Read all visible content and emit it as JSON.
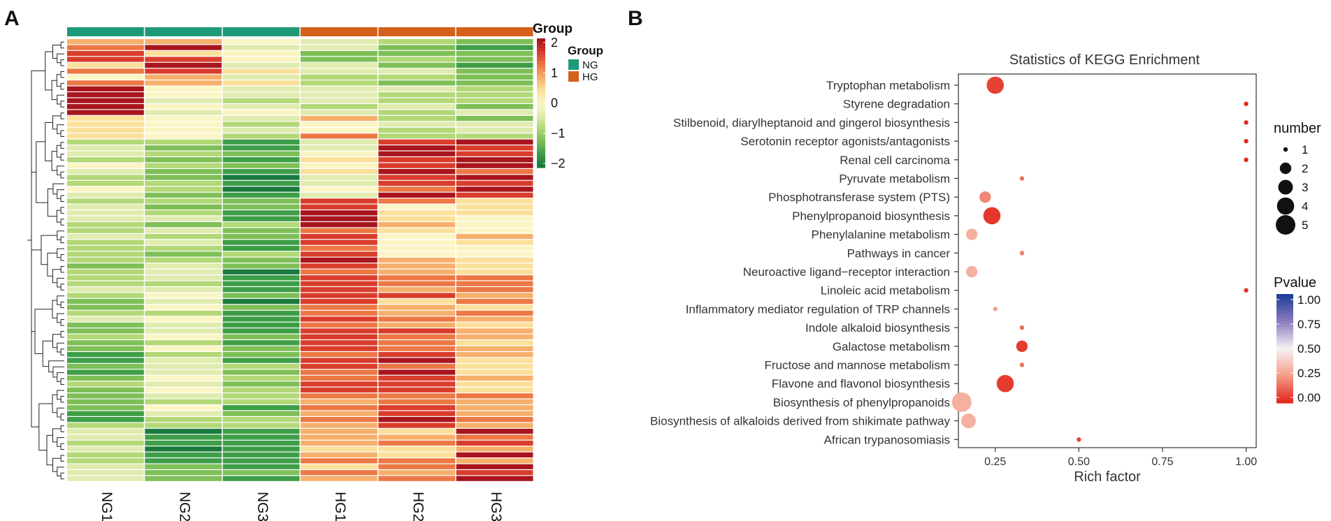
{
  "panels": {
    "a_label": "A",
    "b_label": "B"
  },
  "heatmap": {
    "columns": [
      "NG1",
      "NG2",
      "NG3",
      "HG1",
      "HG2",
      "HG3"
    ],
    "column_groups": [
      "NG",
      "NG",
      "NG",
      "HG",
      "HG",
      "HG"
    ],
    "group_colors": {
      "NG": "#1f9a78",
      "HG": "#d4601c"
    },
    "legend_group_title": "Group",
    "legend_scale_title": "Group",
    "scale_ticks": [
      "2",
      "1",
      "0",
      "−1",
      "−2"
    ],
    "group_legend": [
      {
        "label": "NG"
      },
      {
        "label": "HG"
      }
    ],
    "palette": [
      "#1a7a3e",
      "#3e9e48",
      "#7ebf58",
      "#b3d877",
      "#e0ebb0",
      "#fbf5c5",
      "#fbe09c",
      "#f6b06c",
      "#ec7845",
      "#d93d2c",
      "#a8151e"
    ]
  },
  "chart_data": {
    "type": "scatter",
    "title": "Statistics of KEGG Enrichment",
    "xlabel": "Rich factor",
    "ylabel": "",
    "xlim": [
      0.14,
      1.03
    ],
    "xticks": [
      0.25,
      0.5,
      0.75,
      1.0
    ],
    "xtick_labels": [
      "0.25",
      "0.50",
      "0.75",
      "1.00"
    ],
    "grid": false,
    "pathways": [
      "Tryptophan metabolism",
      "Styrene degradation",
      "Stilbenoid, diarylheptanoid and gingerol biosynthesis",
      "Serotonin receptor agonists/antagonists",
      "Renal cell carcinoma",
      "Pyruvate metabolism",
      "Phosphotransferase system (PTS)",
      "Phenylpropanoid biosynthesis",
      "Phenylalanine metabolism",
      "Pathways in cancer",
      "Neuroactive ligand−receptor interaction",
      "Linoleic acid metabolism",
      "Inflammatory mediator regulation of TRP channels",
      "Indole alkaloid biosynthesis",
      "Galactose metabolism",
      "Fructose and mannose metabolism",
      "Flavone and flavonol biosynthesis",
      "Biosynthesis of phenylpropanoids",
      "Biosynthesis of alkaloids derived from shikimate pathway",
      "African trypanosomiasis"
    ],
    "rich_factor": [
      0.25,
      1.0,
      1.0,
      1.0,
      1.0,
      0.33,
      0.22,
      0.24,
      0.18,
      0.33,
      0.18,
      1.0,
      0.25,
      0.33,
      0.33,
      0.33,
      0.28,
      0.15,
      0.17,
      0.5
    ],
    "number": [
      4,
      1,
      1,
      1,
      1,
      1,
      2,
      4,
      2,
      1,
      2,
      1,
      1,
      1,
      2,
      1,
      4,
      5,
      3,
      1
    ],
    "pvalue": [
      0.05,
      0.0,
      0.0,
      0.0,
      0.0,
      0.15,
      0.2,
      0.03,
      0.3,
      0.18,
      0.3,
      0.02,
      0.25,
      0.14,
      0.04,
      0.15,
      0.04,
      0.3,
      0.3,
      0.06
    ],
    "size_legend": {
      "title": "number",
      "labels": [
        "1",
        "2",
        "3",
        "4",
        "5"
      ],
      "values": [
        1,
        2,
        3,
        4,
        5
      ]
    },
    "color_legend": {
      "title": "Pvalue",
      "labels": [
        "1.00",
        "0.75",
        "0.50",
        "0.25",
        "0.00"
      ],
      "values": [
        1.0,
        0.75,
        0.5,
        0.25,
        0.0
      ]
    }
  }
}
